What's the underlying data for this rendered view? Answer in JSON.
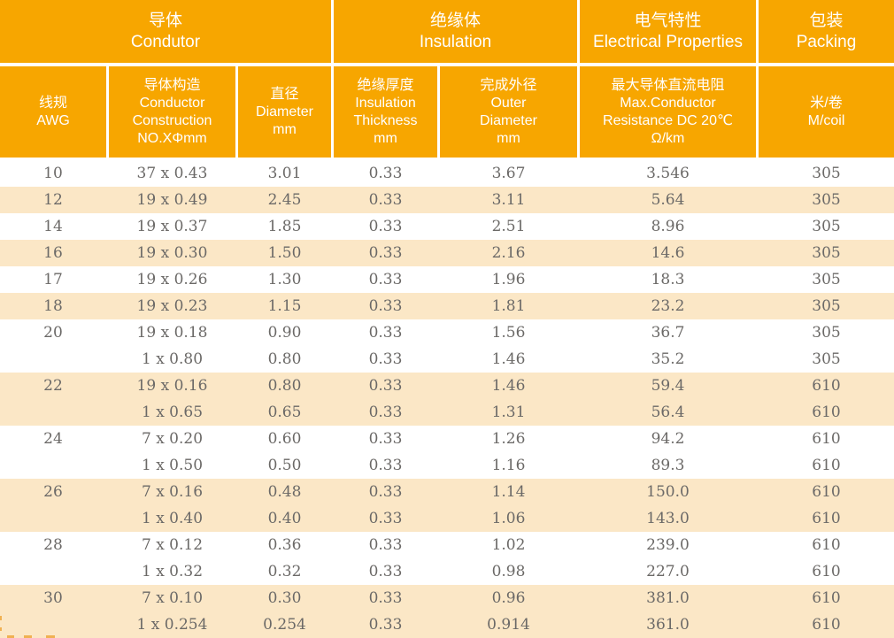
{
  "colors": {
    "header_orange": "#F7A600",
    "header_text": "#FFFFFF",
    "stripe_cream": "#FBE7C6",
    "body_text": "#6B6967",
    "artifact_orange": "#F0B152"
  },
  "table": {
    "header_groups": [
      {
        "zh": "导体",
        "en": "Condutor",
        "span": 3
      },
      {
        "zh": "绝缘体",
        "en": "Insulation",
        "span": 2
      },
      {
        "zh": "电气特性",
        "en": "Electrical Properties",
        "span": 1
      },
      {
        "zh": "包装",
        "en": "Packing",
        "span": 1
      }
    ],
    "columns": [
      {
        "id": "awg",
        "lines": [
          "线规",
          "AWG"
        ]
      },
      {
        "id": "conductor-construction",
        "lines": [
          "导体构造",
          "Conductor",
          "Construction",
          "NO.XΦmm"
        ]
      },
      {
        "id": "diameter",
        "lines": [
          "直径",
          "Diameter",
          "mm"
        ]
      },
      {
        "id": "insulation-thickness",
        "lines": [
          "绝缘厚度",
          "Insulation",
          "Thickness",
          "mm"
        ]
      },
      {
        "id": "outer-diameter",
        "lines": [
          "完成外径",
          "Outer",
          "Diameter",
          "mm"
        ]
      },
      {
        "id": "max-dc-resistance",
        "lines": [
          "最大导体直流电阻",
          "Max.Conductor",
          "Resistance DC 20℃",
          "Ω/km"
        ]
      },
      {
        "id": "meters-per-coil",
        "lines": [
          "米/卷",
          "M/coil"
        ]
      }
    ],
    "rows": [
      {
        "shaded": false,
        "cells": [
          "10",
          "37 x 0.43",
          "3.01",
          "0.33",
          "3.67",
          "3.546",
          "305"
        ]
      },
      {
        "shaded": true,
        "cells": [
          "12",
          "19 x 0.49",
          "2.45",
          "0.33",
          "3.11",
          "5.64",
          "305"
        ]
      },
      {
        "shaded": false,
        "cells": [
          "14",
          "19 x 0.37",
          "1.85",
          "0.33",
          "2.51",
          "8.96",
          "305"
        ]
      },
      {
        "shaded": true,
        "cells": [
          "16",
          "19 x 0.30",
          "1.50",
          "0.33",
          "2.16",
          "14.6",
          "305"
        ]
      },
      {
        "shaded": false,
        "cells": [
          "17",
          "19 x 0.26",
          "1.30",
          "0.33",
          "1.96",
          "18.3",
          "305"
        ]
      },
      {
        "shaded": true,
        "cells": [
          "18",
          "19 x 0.23",
          "1.15",
          "0.33",
          "1.81",
          "23.2",
          "305"
        ]
      },
      {
        "shaded": false,
        "cells": [
          "20",
          "19 x 0.18",
          "0.90",
          "0.33",
          "1.56",
          "36.7",
          "305"
        ]
      },
      {
        "shaded": false,
        "cells": [
          "",
          "1 x 0.80",
          "0.80",
          "0.33",
          "1.46",
          "35.2",
          "305"
        ]
      },
      {
        "shaded": true,
        "cells": [
          "22",
          "19 x 0.16",
          "0.80",
          "0.33",
          "1.46",
          "59.4",
          "610"
        ]
      },
      {
        "shaded": true,
        "cells": [
          "",
          "1 x 0.65",
          "0.65",
          "0.33",
          "1.31",
          "56.4",
          "610"
        ]
      },
      {
        "shaded": false,
        "cells": [
          "24",
          "7 x 0.20",
          "0.60",
          "0.33",
          "1.26",
          "94.2",
          "610"
        ]
      },
      {
        "shaded": false,
        "cells": [
          "",
          "1 x 0.50",
          "0.50",
          "0.33",
          "1.16",
          "89.3",
          "610"
        ]
      },
      {
        "shaded": true,
        "cells": [
          "26",
          "7 x 0.16",
          "0.48",
          "0.33",
          "1.14",
          "150.0",
          "610"
        ]
      },
      {
        "shaded": true,
        "cells": [
          "",
          "1 x 0.40",
          "0.40",
          "0.33",
          "1.06",
          "143.0",
          "610"
        ]
      },
      {
        "shaded": false,
        "cells": [
          "28",
          "7 x 0.12",
          "0.36",
          "0.33",
          "1.02",
          "239.0",
          "610"
        ]
      },
      {
        "shaded": false,
        "cells": [
          "",
          "1 x 0.32",
          "0.32",
          "0.33",
          "0.98",
          "227.0",
          "610"
        ]
      },
      {
        "shaded": true,
        "cells": [
          "30",
          "7 x 0.10",
          "0.30",
          "0.33",
          "0.96",
          "381.0",
          "610"
        ]
      },
      {
        "shaded": true,
        "cells": [
          "",
          "1 x 0.254",
          "0.254",
          "0.33",
          "0.914",
          "361.0",
          "610"
        ]
      }
    ]
  }
}
